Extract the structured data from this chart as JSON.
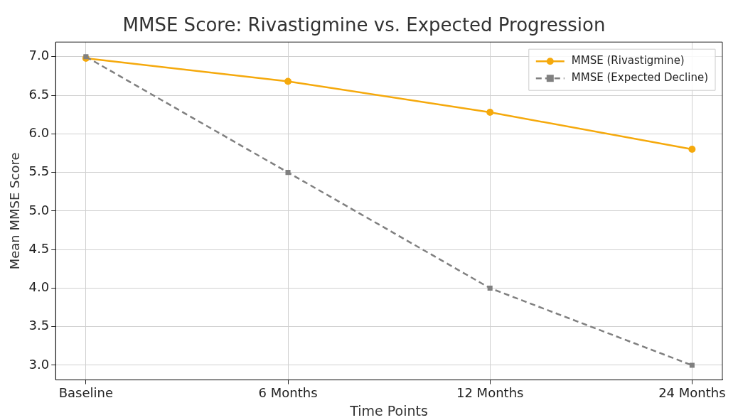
{
  "chart_data": {
    "type": "line",
    "title": "MMSE Score: Rivastigmine vs. Expected Progression",
    "xlabel": "Time Points",
    "ylabel": "Mean MMSE Score",
    "categories": [
      "Baseline",
      "6 Months",
      "12 Months",
      "24 Months"
    ],
    "series": [
      {
        "name": "MMSE (Rivastigmine)",
        "color": "#f5a90c",
        "values": [
          6.98,
          6.68,
          6.28,
          5.8
        ],
        "marker": "circle",
        "line_style": "solid"
      },
      {
        "name": "MMSE (Expected Decline)",
        "color": "#808080",
        "values": [
          7.0,
          5.5,
          4.0,
          3.0
        ],
        "marker": "square",
        "line_style": "dashed"
      }
    ],
    "ylim": [
      2.81,
      7.19
    ],
    "yticks": [
      {
        "value": 3,
        "label": "3.0"
      },
      3.5,
      {
        "value": 4,
        "label": "4.0"
      },
      4.5,
      {
        "value": 5,
        "label": "5.0"
      },
      5.5,
      {
        "value": 6,
        "label": "6.0"
      },
      6.5,
      {
        "value": 7,
        "label": "7.0"
      }
    ],
    "grid": true,
    "legend": "top right"
  }
}
